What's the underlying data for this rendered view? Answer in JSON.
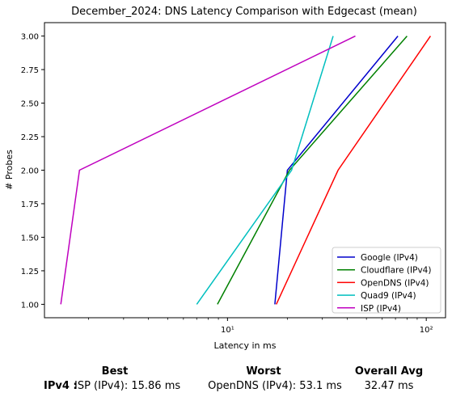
{
  "chart_data": {
    "type": "line",
    "title": "December_2024: DNS Latency Comparison with Edgecast (mean)",
    "xlabel": "Latency in ms",
    "ylabel": "# Probes",
    "xscale": "log",
    "xlim": [
      1.2,
      125
    ],
    "ylim": [
      0.9,
      3.1
    ],
    "x_ticks": [
      {
        "value": 10,
        "label": "10¹"
      },
      {
        "value": 100,
        "label": "10²"
      }
    ],
    "y_ticks": [
      "1.00",
      "1.25",
      "1.50",
      "1.75",
      "2.00",
      "2.25",
      "2.50",
      "2.75",
      "3.00"
    ],
    "legend_position": "lower-right",
    "grid": false,
    "series": [
      {
        "name": "Google (IPv4)",
        "color": "#0000cc",
        "x": [
          17.3,
          20.0,
          72.0
        ],
        "y": [
          1,
          2,
          3
        ]
      },
      {
        "name": "Cloudflare (IPv4)",
        "color": "#008000",
        "x": [
          8.9,
          20.5,
          80.0
        ],
        "y": [
          1,
          2,
          3
        ]
      },
      {
        "name": "OpenDNS (IPv4)",
        "color": "#ff0000",
        "x": [
          17.6,
          36.0,
          105.0
        ],
        "y": [
          1,
          2,
          3
        ]
      },
      {
        "name": "Quad9 (IPv4)",
        "color": "#00bfbf",
        "x": [
          7.0,
          21.0,
          34.0
        ],
        "y": [
          1,
          2,
          3
        ]
      },
      {
        "name": "ISP (IPv4)",
        "color": "#bf00bf",
        "x": [
          1.45,
          1.8,
          44.0
        ],
        "y": [
          1,
          2,
          3
        ]
      }
    ]
  },
  "summary": {
    "headers": {
      "best": "Best",
      "worst": "Worst",
      "overall": "Overall Avg"
    },
    "row_label": "IPv4 :",
    "best": "ISP (IPv4): 15.86 ms",
    "worst": "OpenDNS (IPv4): 53.1 ms",
    "overall": "32.47 ms"
  }
}
